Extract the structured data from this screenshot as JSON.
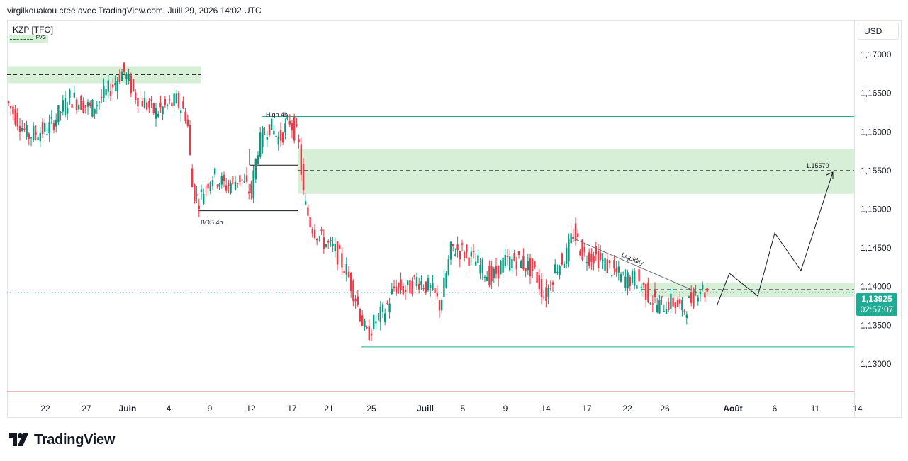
{
  "header": {
    "author_line": "virgilkouakou créé avec TradingView.com, Juill 29, 2026 14:02 UTC"
  },
  "toolbar": {
    "currency": "USD"
  },
  "symbol": "KZP [TFO]",
  "legend": {
    "fvg_label": "FVG"
  },
  "price_tag": {
    "price": "1,13925",
    "countdown": "02:57:07"
  },
  "brand": {
    "name": "TradingView"
  },
  "colors": {
    "up": "#089981",
    "down": "#f23645",
    "zone": "#d7eed7",
    "line": "#22ab94",
    "brand": "#131722"
  },
  "annotations": {
    "high_4h": "High 4h",
    "bos_4h": "BOS 4h",
    "target_price": "1.15570",
    "liquidity": "Liquidity"
  },
  "chart_data": {
    "type": "candlestick",
    "y_ticks": [
      "1,17000",
      "1,16500",
      "1,16000",
      "1,15500",
      "1,15000",
      "1,14500",
      "1,14000",
      "1,13500",
      "1,13000"
    ],
    "y_tick_values": [
      1.17,
      1.165,
      1.16,
      1.155,
      1.15,
      1.145,
      1.14,
      1.135,
      1.13
    ],
    "ylim": [
      1.1255,
      1.1745
    ],
    "x_ticks": [
      "22",
      "27",
      "Juin",
      "4",
      "9",
      "12",
      "17",
      "21",
      "25",
      "Juill",
      "5",
      "9",
      "14",
      "17",
      "22",
      "26",
      "Août",
      "6",
      "11",
      "14"
    ],
    "x_tick_index": [
      54,
      112,
      170,
      228,
      286,
      344,
      402,
      454,
      514,
      590,
      643,
      703,
      760,
      818,
      875,
      928,
      1024,
      1083,
      1140,
      1200
    ],
    "key_levels": {
      "fvg_top": [
        1.1685,
        1.1663
      ],
      "fvg_mid": [
        1.1578,
        1.152
      ],
      "fvg_low": [
        1.1405,
        1.1387
      ],
      "high_4h": 1.162,
      "bos_4h": 1.1498,
      "target": 1.1557,
      "support": 1.1322,
      "current": 1.13925
    },
    "candles_ohlc_keypoints": [
      [
        0,
        1.164
      ],
      [
        30,
        1.1595
      ],
      [
        60,
        1.1605
      ],
      [
        90,
        1.1645
      ],
      [
        120,
        1.163
      ],
      [
        150,
        1.166
      ],
      [
        165,
        1.168
      ],
      [
        180,
        1.165
      ],
      [
        210,
        1.1625
      ],
      [
        240,
        1.164
      ],
      [
        255,
        1.162
      ],
      [
        262,
        1.153
      ],
      [
        270,
        1.151
      ],
      [
        290,
        1.1545
      ],
      [
        310,
        1.153
      ],
      [
        330,
        1.154
      ],
      [
        345,
        1.152
      ],
      [
        355,
        1.158
      ],
      [
        370,
        1.161
      ],
      [
        385,
        1.159
      ],
      [
        400,
        1.1615
      ],
      [
        412,
        1.159
      ],
      [
        420,
        1.151
      ],
      [
        430,
        1.148
      ],
      [
        445,
        1.146
      ],
      [
        465,
        1.1445
      ],
      [
        480,
        1.142
      ],
      [
        495,
        1.138
      ],
      [
        508,
        1.1335
      ],
      [
        520,
        1.1355
      ],
      [
        535,
        1.137
      ],
      [
        548,
        1.14
      ],
      [
        565,
        1.1395
      ],
      [
        580,
        1.141
      ],
      [
        600,
        1.1395
      ],
      [
        612,
        1.1375
      ],
      [
        628,
        1.145
      ],
      [
        645,
        1.1445
      ],
      [
        665,
        1.143
      ],
      [
        685,
        1.141
      ],
      [
        700,
        1.143
      ],
      [
        720,
        1.1435
      ],
      [
        745,
        1.142
      ],
      [
        760,
        1.1385
      ],
      [
        775,
        1.1425
      ],
      [
        790,
        1.144
      ],
      [
        800,
        1.147
      ],
      [
        815,
        1.144
      ],
      [
        830,
        1.144
      ],
      [
        850,
        1.1425
      ],
      [
        870,
        1.141
      ],
      [
        890,
        1.141
      ],
      [
        905,
        1.139
      ],
      [
        920,
        1.1375
      ],
      [
        940,
        1.138
      ],
      [
        955,
        1.137
      ],
      [
        968,
        1.1385
      ],
      [
        978,
        1.14
      ],
      [
        987,
        1.13925
      ]
    ]
  }
}
